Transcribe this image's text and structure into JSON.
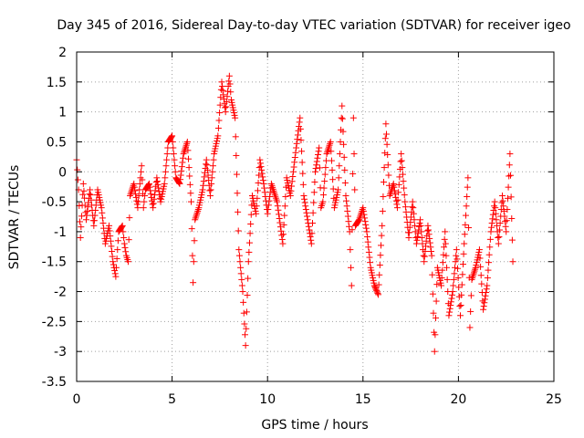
{
  "chart_data": {
    "type": "scatter",
    "title": "Day 345 of 2016, Sidereal Day-to-day VTEC variation (SDTVAR) for receiver igeo",
    "xlabel": "GPS time / hours",
    "ylabel": "SDTVAR / TECUs",
    "xlim": [
      0,
      25
    ],
    "ylim": [
      -3.5,
      2
    ],
    "x_ticks": [
      0,
      5,
      10,
      15,
      20,
      25
    ],
    "y_ticks": [
      -3.5,
      -3,
      -2.5,
      -2,
      -1.5,
      -1,
      -0.5,
      0,
      0.5,
      1,
      1.5,
      2
    ],
    "x_tick_labels": [
      "0",
      "5",
      "10",
      "15",
      "20",
      "25"
    ],
    "y_tick_labels": [
      "-3.5",
      "-3",
      "-2.5",
      "-2",
      "-1.5",
      "-1",
      "-0.5",
      "0",
      "0.5",
      "1",
      "1.5",
      "2"
    ],
    "grid": true,
    "marker": "+",
    "color": "#ff0000",
    "series": [
      {
        "name": "SDTVAR",
        "anchors": [
          [
            0.0,
            0.2
          ],
          [
            0.1,
            -0.3
          ],
          [
            0.2,
            -1.1
          ],
          [
            0.35,
            -0.2
          ],
          [
            0.5,
            -0.8
          ],
          [
            0.7,
            -0.3
          ],
          [
            0.9,
            -0.9
          ],
          [
            1.1,
            -0.3
          ],
          [
            1.3,
            -0.6
          ],
          [
            1.5,
            -1.2
          ],
          [
            1.7,
            -0.9
          ],
          [
            1.9,
            -1.5
          ],
          [
            2.05,
            -1.75
          ],
          [
            2.2,
            -1.0
          ],
          [
            2.4,
            -0.9
          ],
          [
            2.5,
            -1.2
          ],
          [
            2.6,
            -1.4
          ],
          [
            2.7,
            -1.5
          ],
          [
            2.8,
            -0.4
          ],
          [
            3.0,
            -0.2
          ],
          [
            3.2,
            -0.6
          ],
          [
            3.4,
            0.1
          ],
          [
            3.5,
            -0.6
          ],
          [
            3.6,
            -0.3
          ],
          [
            3.8,
            -0.2
          ],
          [
            4.0,
            -0.6
          ],
          [
            4.2,
            -0.1
          ],
          [
            4.4,
            -0.5
          ],
          [
            4.6,
            -0.2
          ],
          [
            4.8,
            0.5
          ],
          [
            5.0,
            0.6
          ],
          [
            5.2,
            -0.1
          ],
          [
            5.4,
            -0.2
          ],
          [
            5.6,
            0.3
          ],
          [
            5.8,
            0.5
          ],
          [
            6.0,
            -0.5
          ],
          [
            6.1,
            -1.85
          ],
          [
            6.2,
            -0.8
          ],
          [
            6.4,
            -0.6
          ],
          [
            6.6,
            -0.3
          ],
          [
            6.8,
            0.2
          ],
          [
            7.0,
            -0.4
          ],
          [
            7.2,
            0.3
          ],
          [
            7.4,
            0.6
          ],
          [
            7.6,
            1.5
          ],
          [
            7.8,
            1.0
          ],
          [
            8.0,
            1.6
          ],
          [
            8.1,
            1.2
          ],
          [
            8.3,
            0.9
          ],
          [
            8.5,
            -1.3
          ],
          [
            8.7,
            -2.0
          ],
          [
            8.85,
            -2.9
          ],
          [
            9.0,
            -1.5
          ],
          [
            9.2,
            -0.4
          ],
          [
            9.4,
            -0.7
          ],
          [
            9.6,
            0.2
          ],
          [
            9.8,
            -0.2
          ],
          [
            10.0,
            -0.7
          ],
          [
            10.2,
            -0.2
          ],
          [
            10.5,
            -0.5
          ],
          [
            10.8,
            -1.2
          ],
          [
            11.0,
            -0.1
          ],
          [
            11.2,
            -0.4
          ],
          [
            11.5,
            0.4
          ],
          [
            11.7,
            0.9
          ],
          [
            11.9,
            -0.4
          ],
          [
            12.1,
            -0.8
          ],
          [
            12.3,
            -1.2
          ],
          [
            12.5,
            0.0
          ],
          [
            12.7,
            0.4
          ],
          [
            12.8,
            -0.6
          ],
          [
            12.9,
            -0.5
          ],
          [
            13.1,
            0.3
          ],
          [
            13.3,
            0.5
          ],
          [
            13.5,
            -0.6
          ],
          [
            13.7,
            -0.3
          ],
          [
            13.9,
            1.1
          ],
          [
            14.1,
            -0.4
          ],
          [
            14.3,
            -1.0
          ],
          [
            14.4,
            -1.9
          ],
          [
            14.5,
            0.9
          ],
          [
            14.6,
            -0.9
          ],
          [
            14.8,
            -0.8
          ],
          [
            15.0,
            -0.6
          ],
          [
            15.2,
            -1.0
          ],
          [
            15.4,
            -1.6
          ],
          [
            15.6,
            -1.9
          ],
          [
            15.8,
            -2.05
          ],
          [
            16.0,
            -0.9
          ],
          [
            16.2,
            0.8
          ],
          [
            16.4,
            -0.4
          ],
          [
            16.6,
            -0.2
          ],
          [
            16.8,
            -0.6
          ],
          [
            17.0,
            0.3
          ],
          [
            17.2,
            -0.5
          ],
          [
            17.4,
            -1.1
          ],
          [
            17.6,
            -0.5
          ],
          [
            17.8,
            -1.2
          ],
          [
            18.0,
            -0.8
          ],
          [
            18.2,
            -1.5
          ],
          [
            18.4,
            -0.9
          ],
          [
            18.6,
            -1.4
          ],
          [
            18.75,
            -3.0
          ],
          [
            18.9,
            -1.6
          ],
          [
            19.1,
            -1.9
          ],
          [
            19.3,
            -1.0
          ],
          [
            19.5,
            -2.4
          ],
          [
            19.7,
            -2.0
          ],
          [
            19.9,
            -1.3
          ],
          [
            20.1,
            -2.4
          ],
          [
            20.3,
            -1.2
          ],
          [
            20.5,
            -0.1
          ],
          [
            20.6,
            -2.6
          ],
          [
            20.7,
            -1.8
          ],
          [
            20.9,
            -1.6
          ],
          [
            21.1,
            -1.3
          ],
          [
            21.3,
            -2.3
          ],
          [
            21.5,
            -1.9
          ],
          [
            21.7,
            -1.0
          ],
          [
            21.9,
            -0.5
          ],
          [
            22.1,
            -1.2
          ],
          [
            22.3,
            -0.4
          ],
          [
            22.5,
            -1.0
          ],
          [
            22.7,
            0.3
          ],
          [
            22.85,
            -1.5
          ]
        ]
      }
    ]
  }
}
